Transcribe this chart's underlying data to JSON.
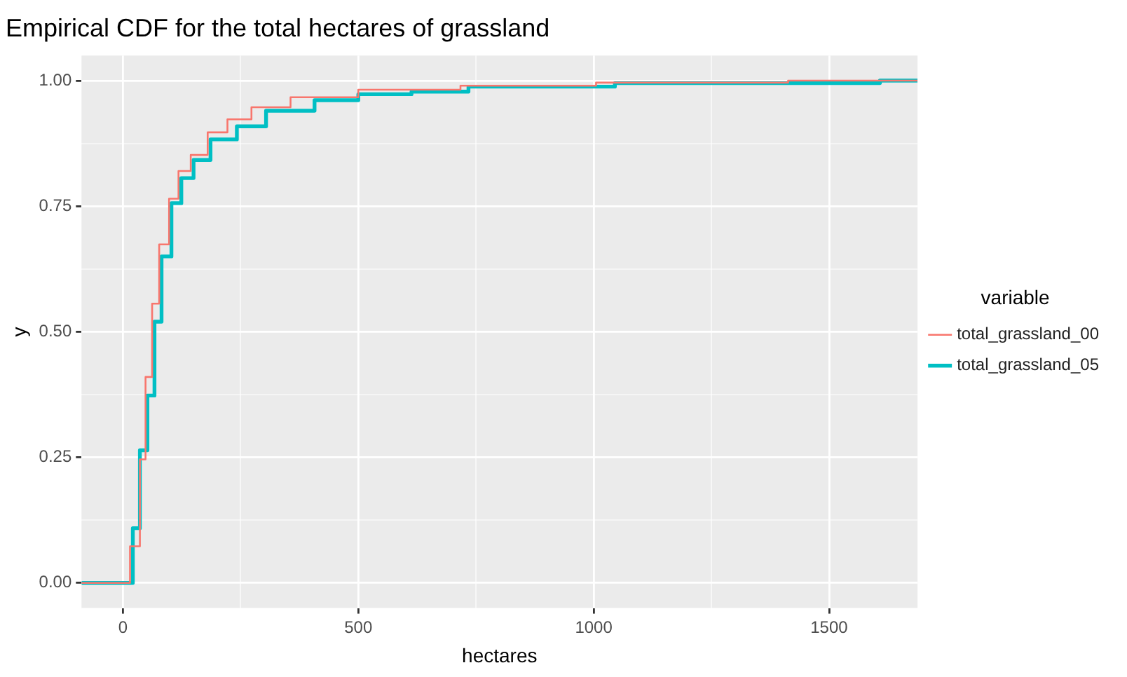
{
  "chart_data": {
    "type": "step",
    "title": "Empirical CDF for the total hectares of grassland",
    "xlabel": "hectares",
    "ylabel": "y",
    "legend_title": "variable",
    "legend": "right",
    "grid": true,
    "xlim": [
      -88,
      1688
    ],
    "ylim": [
      -0.05,
      1.05
    ],
    "xticks": [
      0,
      {
        "value": 250,
        "label": null
      },
      500,
      {
        "value": 750,
        "label": null
      },
      1000,
      {
        "value": 1250,
        "label": null
      },
      1500
    ],
    "yticks": [
      {
        "value": 0,
        "label": "0.00"
      },
      {
        "value": 0.125,
        "label": null
      },
      {
        "value": 0.25,
        "label": "0.25"
      },
      {
        "value": 0.375,
        "label": null
      },
      {
        "value": 0.5,
        "label": "0.50"
      },
      {
        "value": 0.625,
        "label": null
      },
      {
        "value": 0.75,
        "label": "0.75"
      },
      {
        "value": 0.875,
        "label": null
      },
      {
        "value": 1,
        "label": "1.00"
      }
    ],
    "series": [
      {
        "name": "total_grassland_00",
        "color": "#f8766d",
        "x": [
          -88,
          0,
          15,
          36,
          48,
          62,
          77,
          98,
          118,
          144,
          180,
          222,
          273,
          356,
          500,
          717,
          1005,
          1413,
          1688
        ],
        "values": [
          0,
          0,
          0.073,
          0.246,
          0.41,
          0.556,
          0.674,
          0.765,
          0.82,
          0.852,
          0.897,
          0.923,
          0.947,
          0.967,
          0.982,
          0.99,
          0.996,
          1,
          1
        ]
      },
      {
        "name": "total_grassland_05",
        "color": "#00bfc4",
        "x": [
          -88,
          2,
          21,
          36,
          52,
          67,
          82,
          103,
          124,
          150,
          186,
          242,
          304,
          407,
          500,
          613,
          734,
          1045,
          1608,
          1688
        ],
        "values": [
          0,
          0,
          0.109,
          0.264,
          0.373,
          0.52,
          0.65,
          0.756,
          0.806,
          0.842,
          0.883,
          0.909,
          0.94,
          0.961,
          0.973,
          0.978,
          0.988,
          0.995,
          1,
          1
        ]
      }
    ]
  }
}
